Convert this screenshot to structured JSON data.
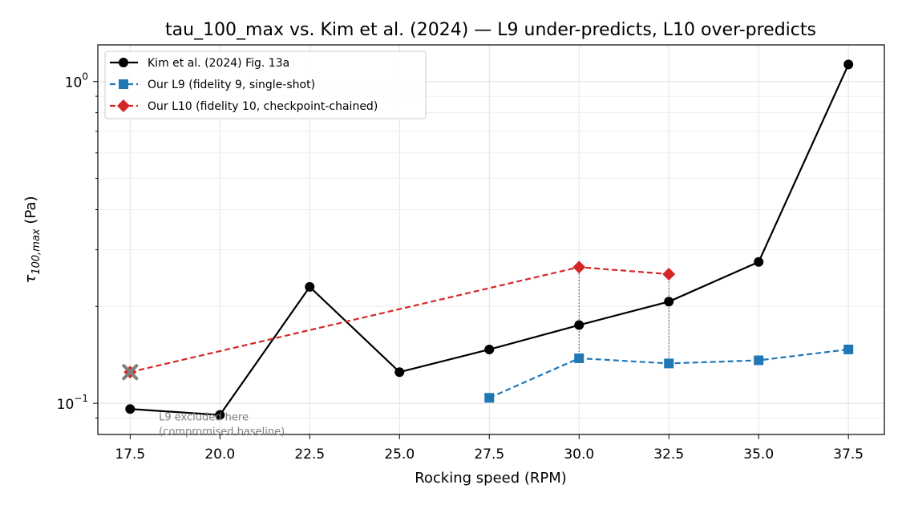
{
  "chart_data": {
    "type": "line",
    "title": "tau_100_max vs. Kim et al. (2024) — L9 under-predicts, L10 over-predicts",
    "xlabel": "Rocking speed (RPM)",
    "ylabel_main": "τ",
    "ylabel_sub": "100,max",
    "ylabel_unit": " (Pa)",
    "y_scale": "log",
    "xlim": [
      16.6,
      38.5
    ],
    "ylim": [
      0.08,
      1.3
    ],
    "x_ticks": [
      {
        "value": 17.5,
        "label": "17.5"
      },
      {
        "value": 20.0,
        "label": "20.0"
      },
      {
        "value": 22.5,
        "label": "22.5"
      },
      {
        "value": 25.0,
        "label": "25.0"
      },
      {
        "value": 27.5,
        "label": "27.5"
      },
      {
        "value": 30.0,
        "label": "30.0"
      },
      {
        "value": 32.5,
        "label": "32.5"
      },
      {
        "value": 35.0,
        "label": "35.0"
      },
      {
        "value": 37.5,
        "label": "37.5"
      }
    ],
    "y_major_ticks": [
      {
        "value": 0.1,
        "base": "10",
        "exp": "−1"
      },
      {
        "value": 1.0,
        "base": "10",
        "exp": "0"
      }
    ],
    "y_minor_ticks": [
      0.09,
      0.2,
      0.3,
      0.4,
      0.5,
      0.6,
      0.7,
      0.8,
      0.9
    ],
    "grid": true,
    "legend_position": "top-left",
    "series": [
      {
        "name": "Kim et al. (2024) Fig. 13a",
        "color": "#000000",
        "marker": "circle",
        "dash": "solid",
        "x": [
          17.5,
          20.0,
          22.5,
          25.0,
          27.5,
          30.0,
          32.5,
          35.0,
          37.5
        ],
        "y": [
          0.096,
          0.092,
          0.23,
          0.125,
          0.147,
          0.175,
          0.207,
          0.275,
          1.13
        ]
      },
      {
        "name": "Our L9 (fidelity 9, single-shot)",
        "color": "#1f77b4",
        "marker": "square",
        "dash": "dashed",
        "x": [
          27.5,
          30.0,
          32.5,
          35.0,
          37.5
        ],
        "y": [
          0.104,
          0.138,
          0.133,
          0.136,
          0.147
        ]
      },
      {
        "name": "Our L10 (fidelity 10, checkpoint-chained)",
        "color": "#d62728",
        "marker": "diamond",
        "dash": "dashed",
        "x": [
          17.5,
          30.0,
          32.5
        ],
        "y": [
          0.125,
          0.265,
          0.252
        ]
      }
    ],
    "connectors": [
      {
        "x": 30.0,
        "y1": 0.138,
        "y2": 0.265
      },
      {
        "x": 32.5,
        "y1": 0.133,
        "y2": 0.252
      }
    ],
    "excluded_marker": {
      "x": 17.5,
      "y": 0.125,
      "color": "#808080"
    },
    "annotation": {
      "lines": [
        "L9 excluded here",
        "(compromised baseline)"
      ],
      "x": 18.3,
      "y": 0.0905
    }
  }
}
